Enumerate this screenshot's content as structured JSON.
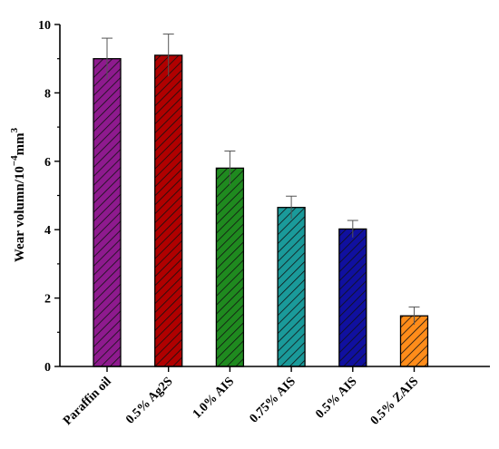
{
  "chart_data": {
    "type": "bar",
    "categories": [
      "Paraffin oil",
      "0.5% Ag2S",
      "1.0% AIS",
      "0.75% AIS",
      "0.5% AIS",
      "0.5% ZAIS"
    ],
    "values": [
      9.0,
      9.1,
      5.8,
      4.65,
      4.02,
      1.48
    ],
    "errors": [
      0.6,
      0.62,
      0.5,
      0.33,
      0.25,
      0.26
    ],
    "colors": [
      "#8e1a8e",
      "#b00000",
      "#1f8a1f",
      "#1a9a9a",
      "#10109f",
      "#ff8c1a"
    ],
    "hatch": "diagonal",
    "ylabel_main": "Wear volumn/10",
    "ylabel_exp": "−4",
    "ylabel_unit": "mm",
    "ylabel_unit_exp": "3",
    "xlabel": "",
    "ylim": [
      0,
      10
    ],
    "yticks": [
      0,
      2,
      4,
      6,
      8,
      10
    ],
    "legend": "none",
    "grid": false
  }
}
